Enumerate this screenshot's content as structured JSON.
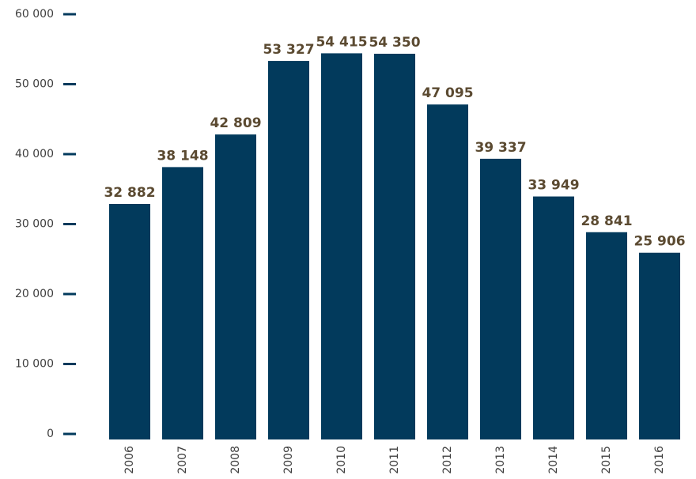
{
  "chart_data": {
    "type": "bar",
    "title": "",
    "xlabel": "",
    "ylabel": "",
    "categories": [
      "2006",
      "2007",
      "2008",
      "2009",
      "2010",
      "2011",
      "2012",
      "2013",
      "2014",
      "2015",
      "2016"
    ],
    "values": [
      32882,
      38148,
      42809,
      53327,
      54415,
      54350,
      47095,
      39337,
      33949,
      28841,
      25906
    ],
    "value_labels": [
      "32 882",
      "38 148",
      "42 809",
      "53 327",
      "54 415",
      "54 350",
      "47 095",
      "39 337",
      "33 949",
      "28 841",
      "25 906"
    ],
    "yticks": [
      0,
      10000,
      20000,
      30000,
      40000,
      50000,
      60000
    ],
    "ytick_labels": [
      "0",
      "10 000",
      "20 000",
      "30 000",
      "40 000",
      "50 000",
      "60 000"
    ],
    "ylim": [
      0,
      60000
    ],
    "grid": false,
    "legend": "none",
    "x_tick_rotation": "vertical",
    "colors": {
      "bar": "#023a5c",
      "value_label": "#5b4a31",
      "tick_mark": "#023a5c",
      "tick_label": "#3f3f3f"
    }
  }
}
